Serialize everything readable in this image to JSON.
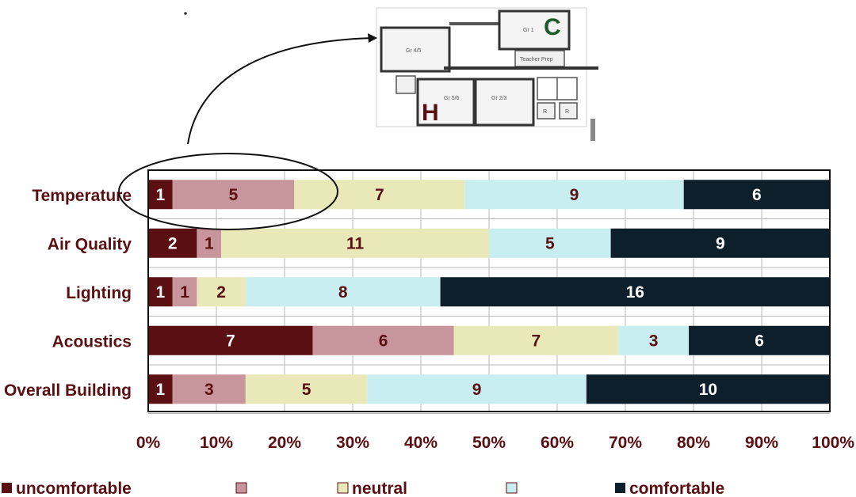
{
  "chart_data": {
    "type": "bar",
    "orientation": "horizontal",
    "stacked": true,
    "normalized": true,
    "categories": [
      "Temperature",
      "Air Quality",
      "Lighting",
      "Acoustics",
      "Overall Building"
    ],
    "series": [
      {
        "name": "uncomfortable",
        "color": "#5a0f12",
        "label_color": "#ffffff",
        "values": [
          1,
          2,
          1,
          7,
          1
        ]
      },
      {
        "name": "",
        "color": "#c9959c",
        "label_color": "#5a0f12",
        "values": [
          5,
          1,
          1,
          6,
          3
        ]
      },
      {
        "name": "neutral",
        "color": "#e9e8b8",
        "label_color": "#5a0f12",
        "values": [
          7,
          11,
          2,
          7,
          5
        ]
      },
      {
        "name": "",
        "color": "#c9eef2",
        "label_color": "#5a0f12",
        "values": [
          9,
          5,
          8,
          3,
          9
        ]
      },
      {
        "name": "comfortable",
        "color": "#0c1f2b",
        "label_color": "#ffffff",
        "values": [
          6,
          9,
          16,
          6,
          10
        ]
      }
    ],
    "x_ticks": [
      "0%",
      "10%",
      "20%",
      "30%",
      "40%",
      "50%",
      "60%",
      "70%",
      "80%",
      "90%",
      "100%"
    ],
    "xlim": [
      0,
      100
    ],
    "grid": true,
    "legend_position": "bottom"
  },
  "floorplan": {
    "room_labels": [
      "Gr 4/5",
      "Gr 1",
      "Gr 5/6",
      "Gr 2/3",
      "Teacher Prep",
      "R",
      "R"
    ],
    "marker_c": "C",
    "marker_h": "H",
    "marker_c_color": "#1f5a2a",
    "marker_h_color": "#5a0f12"
  },
  "colors": {
    "label": "#5a0f12",
    "grid": "#b8b8b8"
  }
}
